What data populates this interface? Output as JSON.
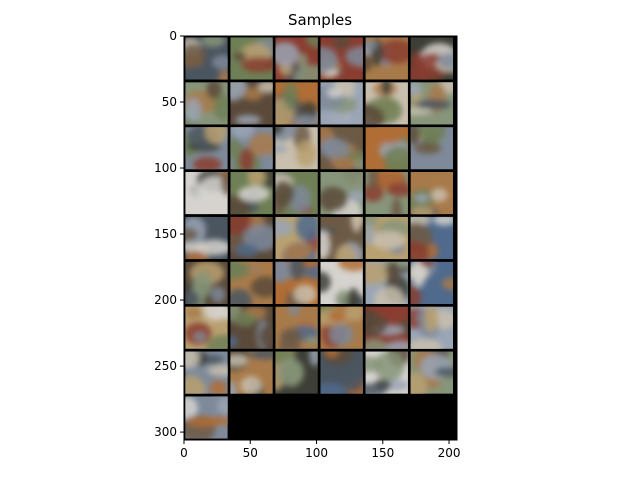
{
  "title": "Samples",
  "image": {
    "content": "grid of blurry generated sample images",
    "grid": {
      "columns": 6,
      "filled_cells": 49,
      "total_cells": 54
    }
  },
  "axes": {
    "x_ticks": [
      "0",
      "50",
      "100",
      "150",
      "200"
    ],
    "y_ticks": [
      "0",
      "50",
      "100",
      "150",
      "200",
      "250",
      "300"
    ]
  },
  "colors": {
    "frame": "#000000",
    "grid_gap": "#000000",
    "empty": "#000000",
    "palette": [
      "#a87a4a",
      "#7e8a9a",
      "#5b4a3a",
      "#b8a070",
      "#6f7f55",
      "#9aa5b5",
      "#8a3d30",
      "#4a5560",
      "#c9bfae",
      "#3d3f36",
      "#b06d35",
      "#87957a",
      "#4f6a8c",
      "#d6d3cf",
      "#6c5a45"
    ]
  }
}
